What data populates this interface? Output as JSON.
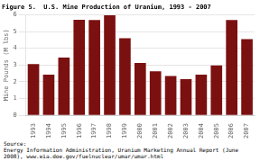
{
  "chart_data": {
    "type": "bar",
    "title": "Figure 5.  U.S. Mine Production of Uranium, 1993 - 2007",
    "categories": [
      "1993",
      "1994",
      "1995",
      "1996",
      "1997",
      "1998",
      "1999",
      "2000",
      "2001",
      "2002",
      "2003",
      "2004",
      "2005",
      "2006",
      "2007"
    ],
    "values": [
      3.05,
      2.42,
      3.44,
      5.7,
      5.68,
      5.97,
      4.6,
      3.12,
      2.62,
      2.34,
      2.16,
      2.42,
      2.97,
      5.68,
      4.54
    ],
    "color": "#7B1010",
    "ylabel": "Mine Pounds (M lbs)",
    "ylim": [
      0,
      6
    ],
    "yticks": [
      0,
      1,
      2,
      3,
      4,
      5,
      6
    ],
    "grid": true,
    "annotations": [
      "Source:",
      "Energy Information Administration, Uranium Marketing Annual Report (June 2008), www.eia.doe.gov/fuelnuclear/umar/umar.html"
    ]
  }
}
